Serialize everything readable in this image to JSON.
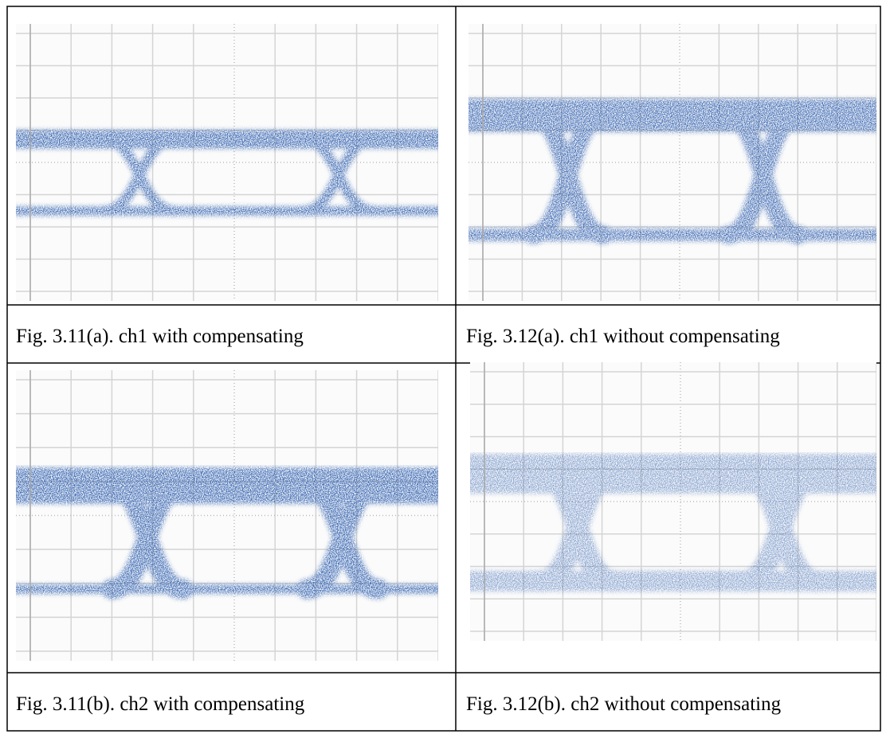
{
  "table": {
    "rows": [
      [
        "Fig. 3.11(a). ch1 with compensating",
        "Fig. 3.12(a). ch1 without compensating"
      ],
      [
        "Fig. 3.11(b). ch2 with compensating",
        "Fig. 3.12(b). ch2 without compensating"
      ]
    ]
  }
}
